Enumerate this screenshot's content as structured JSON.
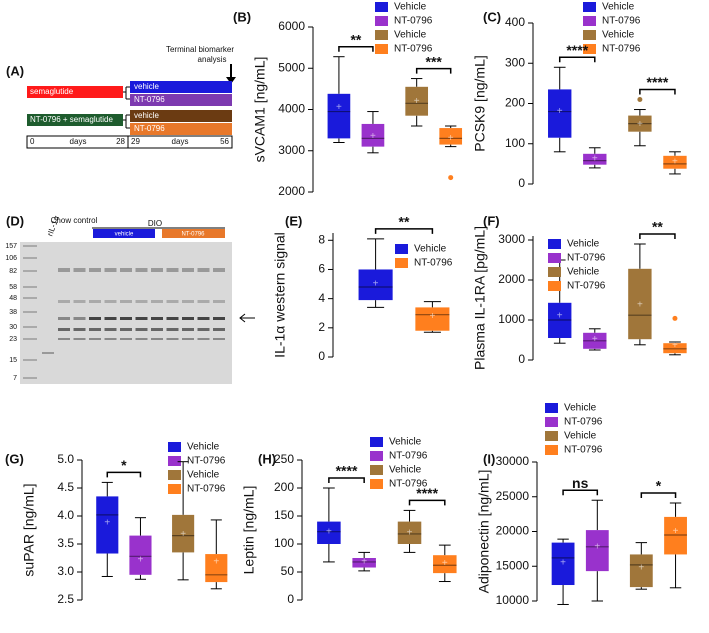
{
  "schematic": {
    "label": "(A)",
    "terminal": [
      "Terminal biomarker",
      "analysis"
    ],
    "bars": [
      "semaglutide",
      "NT-0796 + semaglutide"
    ],
    "arms": [
      "vehicle",
      "NT-0796",
      "vehicle",
      "NT-0796"
    ],
    "timeline": [
      "0",
      "days",
      "28",
      "29",
      "days",
      "56"
    ]
  },
  "gel": {
    "label": "(D)",
    "lanes": [
      "rIL-1α",
      "Chow control",
      "DIO",
      "vehicle",
      "NT-0796"
    ],
    "ladder": [
      "157",
      "106",
      "82",
      "58",
      "48",
      "38",
      "30",
      "23",
      "15",
      "7"
    ]
  },
  "chart_data": [
    {
      "type": "box",
      "label": "(B)",
      "y_label": "sVCAM1 [ng/mL]",
      "ylim": [
        2000,
        6000
      ],
      "yticks": [
        2000,
        3000,
        4000,
        5000,
        6000
      ],
      "significance": [
        "**",
        "***"
      ],
      "series": [
        {
          "name": "Vehicle",
          "color": "#1a1adb",
          "min": 3200,
          "q1": 3300,
          "median": 3950,
          "q3": 4380,
          "max": 5280,
          "mean": 4050
        },
        {
          "name": "NT-0796",
          "color": "#9932cc",
          "min": 2950,
          "q1": 3100,
          "median": 3300,
          "q3": 3650,
          "max": 3950,
          "mean": 3350
        },
        {
          "name": "Vehicle",
          "color": "#a0763a",
          "min": 3600,
          "q1": 3850,
          "median": 4150,
          "q3": 4550,
          "max": 4750,
          "mean": 4200
        },
        {
          "name": "NT-0796",
          "color": "#ff7f1e",
          "min": 3100,
          "q1": 3150,
          "median": 3300,
          "q3": 3550,
          "max": 3600,
          "mean": 3300,
          "outliers": [
            2350
          ]
        }
      ]
    },
    {
      "type": "box",
      "label": "(C)",
      "y_label": "PCSK9 [ng/mL]",
      "ylim": [
        0,
        400
      ],
      "yticks": [
        0,
        100,
        200,
        300,
        400
      ],
      "significance": [
        "****",
        "****"
      ],
      "series": [
        {
          "name": "Vehicle",
          "color": "#1a1adb",
          "min": 80,
          "q1": 115,
          "median": 180,
          "q3": 235,
          "max": 290,
          "mean": 180
        },
        {
          "name": "NT-0796",
          "color": "#9932cc",
          "min": 40,
          "q1": 48,
          "median": 58,
          "q3": 75,
          "max": 90,
          "mean": 62
        },
        {
          "name": "Vehicle",
          "color": "#a0763a",
          "min": 95,
          "q1": 130,
          "median": 150,
          "q3": 170,
          "max": 185,
          "mean": 148,
          "outliers": [
            210
          ]
        },
        {
          "name": "NT-0796",
          "color": "#ff7f1e",
          "min": 25,
          "q1": 38,
          "median": 50,
          "q3": 70,
          "max": 80,
          "mean": 55
        }
      ]
    },
    {
      "type": "box",
      "label": "(E)",
      "y_label": "IL-1α western signal",
      "ylim": [
        0,
        8.5
      ],
      "yticks": [
        0,
        2,
        4,
        6,
        8
      ],
      "significance": [
        "**"
      ],
      "series": [
        {
          "name": "Vehicle",
          "color": "#1a1adb",
          "min": 3.4,
          "q1": 3.9,
          "median": 4.8,
          "q3": 6,
          "max": 8.1,
          "mean": 5
        },
        {
          "name": "NT-0796",
          "color": "#ff7f1e",
          "min": 1.7,
          "q1": 1.8,
          "median": 2.9,
          "q3": 3.4,
          "max": 3.8,
          "mean": 2.8
        }
      ]
    },
    {
      "type": "box",
      "label": "(F)",
      "y_label": "Plasma IL-1RA [pg/mL]",
      "ylim": [
        0,
        3100
      ],
      "yticks": [
        0,
        1000,
        2000,
        3000
      ],
      "significance": [
        null,
        "**"
      ],
      "series": [
        {
          "name": "Vehicle",
          "color": "#1a1adb",
          "min": 420,
          "q1": 550,
          "median": 1000,
          "q3": 1430,
          "max": 2500,
          "mean": 1100
        },
        {
          "name": "NT-0796",
          "color": "#9932cc",
          "min": 250,
          "q1": 280,
          "median": 480,
          "q3": 680,
          "max": 780,
          "mean": 520
        },
        {
          "name": "Vehicle",
          "color": "#a0763a",
          "min": 380,
          "q1": 520,
          "median": 1120,
          "q3": 2280,
          "max": 2900,
          "mean": 1380
        },
        {
          "name": "NT-0796",
          "color": "#ff7f1e",
          "min": 130,
          "q1": 170,
          "median": 280,
          "q3": 420,
          "max": 450,
          "mean": 360,
          "outliers": [
            1040
          ]
        }
      ]
    },
    {
      "type": "box",
      "label": "(G)",
      "y_label": "suPAR [ng/mL]",
      "ylim": [
        2.5,
        5
      ],
      "yticks": [
        2.5,
        {
          "value": 3,
          "label": "3.0"
        },
        3.5,
        {
          "value": 4,
          "label": "4.0"
        },
        4.5,
        {
          "value": 5,
          "label": "5.0"
        }
      ],
      "significance": [
        "*",
        null
      ],
      "series": [
        {
          "name": "Vehicle",
          "color": "#1a1adb",
          "min": 2.92,
          "q1": 3.33,
          "median": 4.02,
          "q3": 4.35,
          "max": 4.6,
          "mean": 3.88
        },
        {
          "name": "NT-0796",
          "color": "#9932cc",
          "min": 2.87,
          "q1": 2.95,
          "median": 3.28,
          "q3": 3.65,
          "max": 3.97,
          "mean": 3.22
        },
        {
          "name": "Vehicle",
          "color": "#a0763a",
          "min": 2.86,
          "q1": 3.35,
          "median": 3.65,
          "q3": 4.02,
          "max": 4.97,
          "mean": 3.67
        },
        {
          "name": "NT-0796",
          "color": "#ff7f1e",
          "min": 2.7,
          "q1": 2.82,
          "median": 2.95,
          "q3": 3.32,
          "max": 3.93,
          "mean": 3.18
        }
      ]
    },
    {
      "type": "box",
      "label": "(H)",
      "y_label": "Leptin [ng/mL]",
      "ylim": [
        0,
        250
      ],
      "yticks": [
        0,
        50,
        100,
        150,
        200,
        250
      ],
      "significance": [
        "****",
        "****"
      ],
      "series": [
        {
          "name": "Vehicle",
          "color": "#1a1adb",
          "min": 68,
          "q1": 100,
          "median": 122,
          "q3": 140,
          "max": 200,
          "mean": 122
        },
        {
          "name": "NT-0796",
          "color": "#9932cc",
          "min": 52,
          "q1": 58,
          "median": 68,
          "q3": 75,
          "max": 85,
          "mean": 68
        },
        {
          "name": "Vehicle",
          "color": "#a0763a",
          "min": 85,
          "q1": 100,
          "median": 118,
          "q3": 140,
          "max": 160,
          "mean": 120
        },
        {
          "name": "NT-0796",
          "color": "#ff7f1e",
          "min": 33,
          "q1": 48,
          "median": 62,
          "q3": 80,
          "max": 98,
          "mean": 65
        }
      ]
    },
    {
      "type": "box",
      "label": "(I)",
      "y_label": "Adiponectin [ng/mL]",
      "ylim": [
        10000,
        30000
      ],
      "yticks": [
        10000,
        15000,
        20000,
        25000,
        30000
      ],
      "significance": [
        "ns",
        "*"
      ],
      "series": [
        {
          "name": "Vehicle",
          "color": "#1a1adb",
          "min": 9500,
          "q1": 12300,
          "median": 16200,
          "q3": 18400,
          "max": 18900,
          "mean": 15500
        },
        {
          "name": "NT-0796",
          "color": "#9932cc",
          "min": 10000,
          "q1": 14300,
          "median": 17800,
          "q3": 20200,
          "max": 24500,
          "mean": 17800
        },
        {
          "name": "Vehicle",
          "color": "#a0763a",
          "min": 11700,
          "q1": 12000,
          "median": 15200,
          "q3": 16700,
          "max": 18400,
          "mean": 14800
        },
        {
          "name": "NT-0796",
          "color": "#ff7f1e",
          "min": 11900,
          "q1": 16700,
          "median": 19500,
          "q3": 22100,
          "max": 24100,
          "mean": 20000
        }
      ]
    }
  ]
}
